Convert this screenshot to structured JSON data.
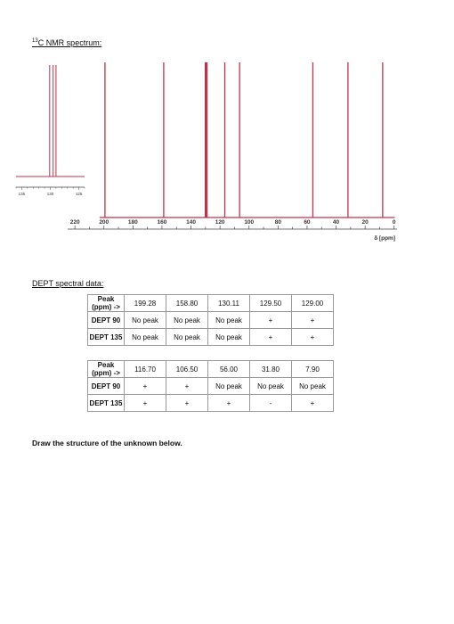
{
  "header": {
    "title_sup": "13",
    "title_text": "C NMR spectrum:"
  },
  "chart_data": [
    {
      "type": "line",
      "title": "",
      "xlabel": "δ [ppm]",
      "xlim": [
        225,
        -2
      ],
      "xticks": [
        220,
        200,
        180,
        160,
        140,
        120,
        100,
        80,
        60,
        40,
        20,
        0
      ],
      "peaks": [
        199.28,
        158.8,
        130.11,
        129.5,
        129.0,
        116.7,
        106.5,
        56.0,
        31.8,
        7.9
      ],
      "grid": false,
      "legend": "none"
    },
    {
      "type": "line",
      "title": "",
      "xlabel": "",
      "xlim": [
        136,
        124
      ],
      "xticks": [
        135,
        130,
        125
      ],
      "peaks": [
        130.11,
        129.5,
        129.0
      ],
      "grid": false,
      "legend": "none"
    }
  ],
  "dept": {
    "heading": "DEPT spectral data:",
    "row_labels": {
      "peak": "Peak (ppm) ->",
      "dept90": "DEPT 90",
      "dept135": "DEPT 135"
    },
    "tables": [
      {
        "peaks": [
          "199.28",
          "158.80",
          "130.11",
          "129.50",
          "129.00"
        ],
        "dept90": [
          "No peak",
          "No peak",
          "No peak",
          "+",
          "+"
        ],
        "dept135": [
          "No peak",
          "No peak",
          "No peak",
          "+",
          "+"
        ]
      },
      {
        "peaks": [
          "116.70",
          "106.50",
          "56.00",
          "31.80",
          "7.90"
        ],
        "dept90": [
          "+",
          "+",
          "No peak",
          "No peak",
          "No peak"
        ],
        "dept135": [
          "+",
          "+",
          "+",
          "-",
          "+"
        ]
      }
    ]
  },
  "instruction": "Draw the structure of the unknown below.",
  "colors": {
    "peak": "#c0324a",
    "axis": "#444444"
  }
}
